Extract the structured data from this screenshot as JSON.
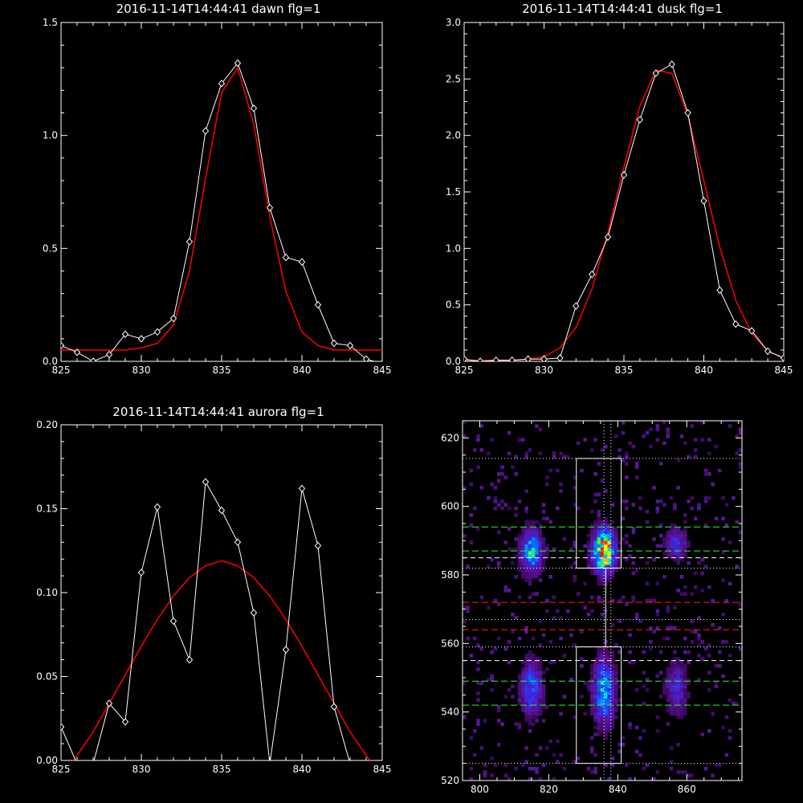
{
  "chart_data": [
    {
      "type": "line",
      "title": "2016-11-14T14:44:41 dawn flg=1",
      "xlim": [
        825,
        845
      ],
      "ylim": [
        0,
        1.5
      ],
      "xticks": [
        "825",
        "830",
        "835",
        "840",
        "845"
      ],
      "yticks": [
        "0.0",
        "0.5",
        "1.0",
        "1.5"
      ],
      "series": [
        {
          "x": [
            825,
            826,
            827,
            828,
            829,
            830,
            831,
            832,
            833,
            834,
            835,
            836,
            837,
            838,
            839,
            840,
            841,
            842,
            843,
            844,
            845
          ],
          "y": [
            0.07,
            0.04,
            0.0,
            0.03,
            0.12,
            0.1,
            0.13,
            0.19,
            0.53,
            1.02,
            1.23,
            1.32,
            1.12,
            0.68,
            0.46,
            0.44,
            0.25,
            0.08,
            0.07,
            0.01,
            -0.01
          ]
        }
      ],
      "fit": {
        "x": [
          825,
          826,
          827,
          828,
          829,
          830,
          831,
          832,
          833,
          834,
          835,
          836,
          837,
          838,
          839,
          840,
          841,
          842,
          843,
          844,
          845
        ],
        "y": [
          0.05,
          0.05,
          0.05,
          0.05,
          0.05,
          0.06,
          0.08,
          0.16,
          0.4,
          0.81,
          1.19,
          1.3,
          1.05,
          0.64,
          0.31,
          0.13,
          0.07,
          0.05,
          0.05,
          0.05,
          0.05
        ]
      }
    },
    {
      "type": "line",
      "title": "2016-11-14T14:44:41 dusk flg=1",
      "xlim": [
        825,
        845
      ],
      "ylim": [
        0,
        3.0
      ],
      "xticks": [
        "825",
        "830",
        "835",
        "840",
        "845"
      ],
      "yticks": [
        "0.0",
        "0.5",
        "1.0",
        "1.5",
        "2.0",
        "2.5",
        "3.0"
      ],
      "series": [
        {
          "x": [
            825,
            826,
            827,
            828,
            829,
            830,
            831,
            832,
            833,
            834,
            835,
            836,
            837,
            838,
            839,
            840,
            841,
            842,
            843,
            844,
            845
          ],
          "y": [
            0.02,
            0.0,
            0.01,
            0.01,
            0.02,
            0.02,
            0.03,
            0.49,
            0.77,
            1.1,
            1.65,
            2.14,
            2.55,
            2.63,
            2.2,
            1.42,
            0.63,
            0.33,
            0.27,
            0.09,
            0.03
          ]
        }
      ],
      "fit": {
        "x": [
          825,
          826,
          827,
          828,
          829,
          830,
          831,
          832,
          833,
          834,
          835,
          836,
          837,
          838,
          839,
          840,
          841,
          842,
          843,
          844,
          845
        ],
        "y": [
          0.01,
          0.01,
          0.01,
          0.01,
          0.02,
          0.04,
          0.12,
          0.3,
          0.64,
          1.14,
          1.72,
          2.26,
          2.58,
          2.55,
          2.18,
          1.6,
          1.01,
          0.54,
          0.25,
          0.09,
          0.03
        ]
      }
    },
    {
      "type": "line",
      "title": "2016-11-14T14:44:41 aurora flg=1",
      "xlim": [
        825,
        845
      ],
      "ylim": [
        0,
        0.2
      ],
      "xticks": [
        "825",
        "830",
        "835",
        "840",
        "845"
      ],
      "yticks": [
        "0.00",
        "0.05",
        "0.10",
        "0.15",
        "0.20"
      ],
      "series": [
        {
          "x": [
            825,
            826,
            827,
            828,
            829,
            830,
            831,
            832,
            833,
            834,
            835,
            836,
            837,
            838,
            839,
            840,
            841,
            842,
            843,
            844,
            845
          ],
          "y": [
            0.02,
            -0.002,
            -0.002,
            0.034,
            0.023,
            0.112,
            0.151,
            0.083,
            0.06,
            0.166,
            0.149,
            0.13,
            0.088,
            -0.002,
            0.066,
            0.162,
            0.128,
            0.032,
            -0.002,
            -0.002,
            -0.01
          ]
        }
      ],
      "fit": {
        "x": [
          825,
          826,
          827,
          828,
          829,
          830,
          831,
          832,
          833,
          834,
          835,
          836,
          837,
          838,
          839,
          840,
          841,
          842,
          843,
          844,
          845
        ],
        "y": [
          -0.01,
          0.003,
          0.017,
          0.034,
          0.051,
          0.068,
          0.084,
          0.098,
          0.109,
          0.116,
          0.119,
          0.116,
          0.109,
          0.098,
          0.084,
          0.068,
          0.051,
          0.034,
          0.017,
          0.003,
          -0.01
        ]
      }
    },
    {
      "type": "heatmap",
      "title": "",
      "xlim": [
        795,
        876
      ],
      "ylim": [
        520,
        625
      ],
      "xticks": [
        "800",
        "820",
        "840",
        "860"
      ],
      "yticks": [
        "520",
        "540",
        "560",
        "580",
        "600",
        "620"
      ],
      "blobs": [
        {
          "x": 815,
          "y": 587,
          "sx": 2.0,
          "sy": 4.0,
          "amp": 0.55
        },
        {
          "x": 836,
          "y": 587,
          "sx": 2.0,
          "sy": 4.0,
          "amp": 1.0
        },
        {
          "x": 857,
          "y": 589,
          "sx": 2.0,
          "sy": 3.0,
          "amp": 0.3
        },
        {
          "x": 815,
          "y": 547,
          "sx": 2.0,
          "sy": 5.0,
          "amp": 0.4
        },
        {
          "x": 836,
          "y": 546,
          "sx": 2.0,
          "sy": 6.0,
          "amp": 0.55
        },
        {
          "x": 857,
          "y": 547,
          "sx": 2.0,
          "sy": 5.0,
          "amp": 0.25
        }
      ],
      "boxes": [
        {
          "x0": 828,
          "x1": 841,
          "y0": 582,
          "y1": 614
        },
        {
          "x0": 828,
          "x1": 841,
          "y0": 525,
          "y1": 559
        }
      ],
      "vertical_dotted_lines": [
        836,
        838
      ],
      "dotted_white_lines": [
        614,
        582,
        567,
        559,
        525
      ],
      "dashed_white_lines": [
        585,
        555
      ],
      "dashed_green_lines": [
        594,
        587,
        549,
        542
      ],
      "dashed_red_lines": [
        572,
        564
      ],
      "colors": {
        "fit": "#ff0000",
        "data": "#ffffff",
        "green": "#22ff22",
        "red": "#ff2020"
      }
    }
  ]
}
